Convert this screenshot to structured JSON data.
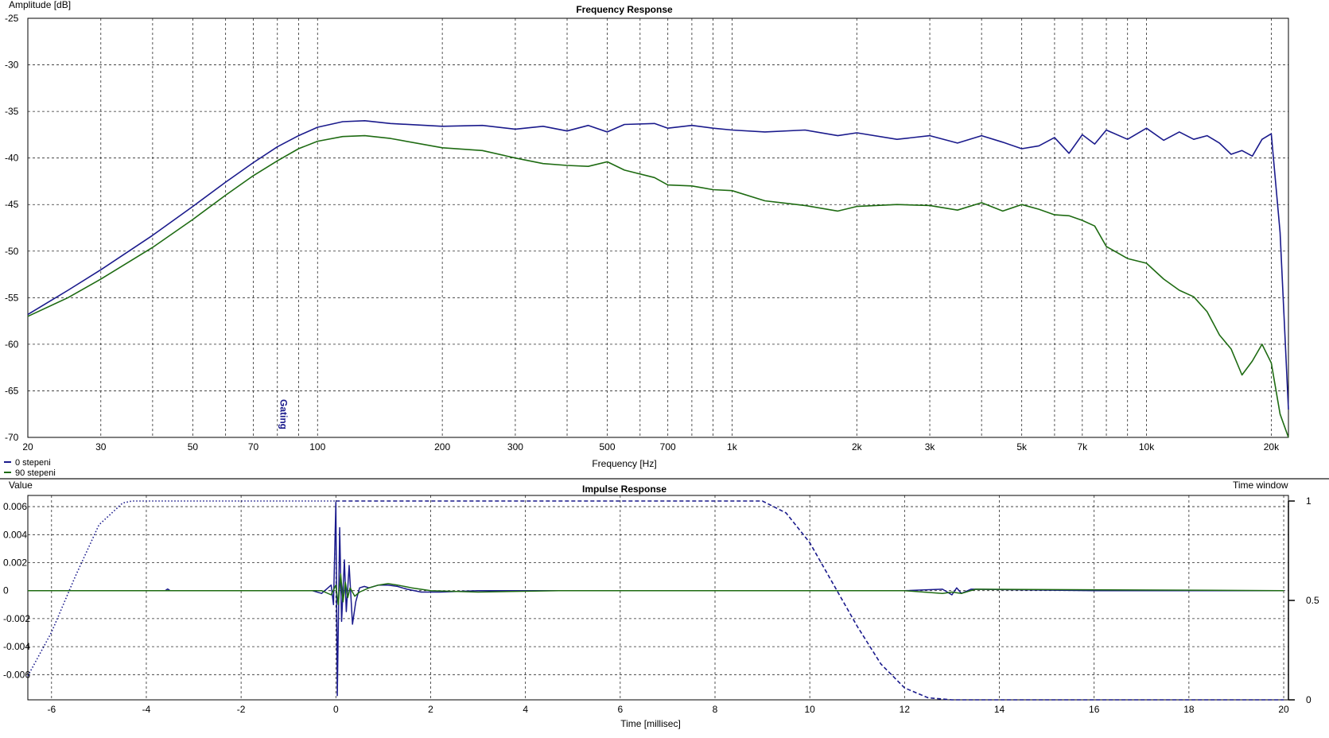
{
  "chart_data": [
    {
      "type": "line",
      "title": "Frequency Response",
      "xlabel": "Frequency [Hz]",
      "ylabel": "Amplitude [dB]",
      "x_scale": "log",
      "xlim": [
        20,
        22000
      ],
      "ylim": [
        -70,
        -25
      ],
      "grid": true,
      "legend_position": "bottom-left",
      "y_ticks": [
        "-25",
        "-30",
        "-35",
        "-40",
        "-45",
        "-50",
        "-55",
        "-60",
        "-65",
        "-70"
      ],
      "x_tick_labels": [
        {
          "v": 20,
          "t": "20"
        },
        {
          "v": 30,
          "t": "30"
        },
        {
          "v": 50,
          "t": "50"
        },
        {
          "v": 70,
          "t": "70"
        },
        {
          "v": 100,
          "t": "100"
        },
        {
          "v": 200,
          "t": "200"
        },
        {
          "v": 300,
          "t": "300"
        },
        {
          "v": 500,
          "t": "500"
        },
        {
          "v": 700,
          "t": "700"
        },
        {
          "v": 1000,
          "t": "1k"
        },
        {
          "v": 2000,
          "t": "2k"
        },
        {
          "v": 3000,
          "t": "3k"
        },
        {
          "v": 5000,
          "t": "5k"
        },
        {
          "v": 7000,
          "t": "7k"
        },
        {
          "v": 10000,
          "t": "10k"
        },
        {
          "v": 20000,
          "t": "20k"
        }
      ],
      "x_grid": [
        20,
        30,
        40,
        50,
        60,
        70,
        80,
        90,
        100,
        200,
        300,
        400,
        500,
        600,
        700,
        800,
        900,
        1000,
        2000,
        3000,
        4000,
        5000,
        6000,
        7000,
        8000,
        9000,
        10000,
        20000
      ],
      "marker": {
        "label": "Gating",
        "x": 88
      },
      "series": [
        {
          "name": "0 stepeni",
          "color": "#1a1a8c",
          "x": [
            20,
            25,
            30,
            40,
            50,
            60,
            70,
            80,
            90,
            100,
            115,
            130,
            150,
            200,
            250,
            300,
            350,
            400,
            450,
            500,
            550,
            650,
            700,
            800,
            900,
            1000,
            1200,
            1500,
            1800,
            2000,
            2500,
            3000,
            3500,
            4000,
            4500,
            5000,
            5500,
            6000,
            6500,
            7000,
            7500,
            8000,
            9000,
            10000,
            11000,
            12000,
            13000,
            14000,
            15000,
            16000,
            17000,
            18000,
            19000,
            20000,
            21000,
            22000
          ],
          "y": [
            -56.8,
            -54.2,
            -52.0,
            -48.3,
            -45.2,
            -42.6,
            -40.5,
            -38.8,
            -37.6,
            -36.7,
            -36.1,
            -36.0,
            -36.3,
            -36.6,
            -36.5,
            -36.9,
            -36.6,
            -37.1,
            -36.5,
            -37.2,
            -36.4,
            -36.3,
            -36.8,
            -36.5,
            -36.8,
            -37.0,
            -37.2,
            -37.0,
            -37.6,
            -37.3,
            -38.0,
            -37.6,
            -38.4,
            -37.6,
            -38.3,
            -39.0,
            -38.7,
            -37.8,
            -39.5,
            -37.5,
            -38.5,
            -37.0,
            -38.0,
            -36.8,
            -38.1,
            -37.2,
            -38.0,
            -37.6,
            -38.4,
            -39.6,
            -39.2,
            -39.8,
            -38.0,
            -37.4,
            -48.0,
            -67.0
          ]
        },
        {
          "name": "90 stepeni",
          "color": "#1e6b12",
          "x": [
            20,
            25,
            30,
            40,
            50,
            60,
            70,
            80,
            90,
            100,
            115,
            130,
            150,
            200,
            250,
            300,
            350,
            400,
            450,
            500,
            550,
            650,
            700,
            800,
            900,
            1000,
            1200,
            1500,
            1800,
            2000,
            2500,
            3000,
            3500,
            4000,
            4500,
            5000,
            5500,
            6000,
            6500,
            7000,
            7500,
            8000,
            9000,
            10000,
            11000,
            12000,
            13000,
            14000,
            15000,
            16000,
            17000,
            18000,
            19000,
            20000,
            21000,
            22000
          ],
          "y": [
            -57.0,
            -55.0,
            -53.0,
            -49.6,
            -46.6,
            -44.0,
            -41.9,
            -40.3,
            -39.0,
            -38.2,
            -37.7,
            -37.6,
            -37.9,
            -38.9,
            -39.2,
            -40.0,
            -40.6,
            -40.8,
            -40.9,
            -40.4,
            -41.3,
            -42.1,
            -42.9,
            -43.0,
            -43.4,
            -43.5,
            -44.6,
            -45.1,
            -45.7,
            -45.2,
            -45.0,
            -45.1,
            -45.6,
            -44.8,
            -45.7,
            -45.0,
            -45.5,
            -46.1,
            -46.2,
            -46.7,
            -47.3,
            -49.5,
            -50.8,
            -51.3,
            -53.0,
            -54.2,
            -54.9,
            -56.5,
            -59.0,
            -60.5,
            -63.3,
            -61.8,
            -60.0,
            -62.0,
            -67.5,
            -70.0
          ]
        }
      ]
    },
    {
      "type": "line",
      "title": "Impulse Response",
      "xlabel": "Time [millisec]",
      "ylabel": "Value",
      "y2label": "Time window",
      "xlim": [
        -6.5,
        20.1
      ],
      "ylim": [
        -0.0078,
        0.0068
      ],
      "y2lim": [
        0,
        1
      ],
      "grid": true,
      "x_ticks": [
        "-6",
        "-4",
        "-2",
        "0",
        "2",
        "4",
        "6",
        "8",
        "10",
        "12",
        "14",
        "16",
        "18",
        "20"
      ],
      "y_ticks": [
        "0.006",
        "0.004",
        "0.002",
        "0",
        "-0.002",
        "-0.004",
        "-0.006"
      ],
      "y2_ticks": [
        "1",
        "0.5",
        "0"
      ],
      "series": [
        {
          "name": "0 stepeni",
          "color": "#1a1a8c",
          "t": [
            -6.5,
            -3.6,
            -3.55,
            -3.5,
            -0.5,
            -0.3,
            -0.1,
            -0.05,
            0.0,
            0.03,
            0.08,
            0.12,
            0.18,
            0.22,
            0.28,
            0.35,
            0.42,
            0.5,
            0.6,
            0.7,
            0.9,
            1.1,
            1.3,
            1.5,
            1.8,
            2.2,
            3.0,
            4.7,
            7.0,
            9.0,
            12.0,
            12.8,
            13.0,
            13.1,
            13.2,
            13.4,
            16.0,
            20.0
          ],
          "v": [
            0.0,
            0.0,
            0.00012,
            0.0,
            0.0,
            -0.0002,
            0.0004,
            -0.001,
            0.0063,
            -0.0075,
            0.0045,
            -0.0022,
            0.0022,
            -0.0015,
            0.0018,
            -0.0024,
            -0.0008,
            0.0002,
            0.0003,
            0.0002,
            0.0004,
            0.0004,
            0.0003,
            0.0001,
            -0.0001,
            -0.0001,
            0.0,
            0.0,
            0.0,
            0.0,
            0.0,
            0.0001,
            -0.0003,
            0.0002,
            -0.0002,
            0.0001,
            0.0,
            0.0
          ]
        },
        {
          "name": "90 stepeni",
          "color": "#1e6b12",
          "t": [
            -6.5,
            -0.3,
            -0.1,
            0.0,
            0.05,
            0.1,
            0.15,
            0.2,
            0.25,
            0.3,
            0.4,
            0.5,
            0.7,
            0.9,
            1.1,
            1.3,
            1.6,
            2.0,
            3.0,
            4.7,
            12.0,
            12.8,
            13.0,
            13.2,
            13.5,
            20.0
          ],
          "v": [
            0.0,
            0.0,
            -0.0003,
            0.0004,
            -0.001,
            0.0012,
            -0.0008,
            0.0006,
            -0.0005,
            0.0002,
            -0.0004,
            -0.0001,
            0.0002,
            0.0004,
            0.0005,
            0.0004,
            0.0002,
            0.0,
            -0.0001,
            0.0,
            0.0,
            -0.0002,
            -0.0001,
            -0.0002,
            0.0001,
            0.0
          ]
        },
        {
          "name": "Time window",
          "axis": "y2",
          "dash": "dotted-then-dashed",
          "color": "#1a1a8c",
          "t": [
            -6.5,
            -6.0,
            -5.5,
            -5.0,
            -4.5,
            -4.3,
            0.0,
            9.0,
            9.5,
            10.0,
            10.5,
            11.0,
            11.5,
            12.0,
            12.5,
            13.0,
            20.0
          ],
          "v": [
            0.12,
            0.34,
            0.62,
            0.88,
            0.99,
            1.0,
            1.0,
            1.0,
            0.94,
            0.79,
            0.58,
            0.37,
            0.18,
            0.06,
            0.01,
            0.0,
            0.0
          ]
        }
      ]
    }
  ]
}
